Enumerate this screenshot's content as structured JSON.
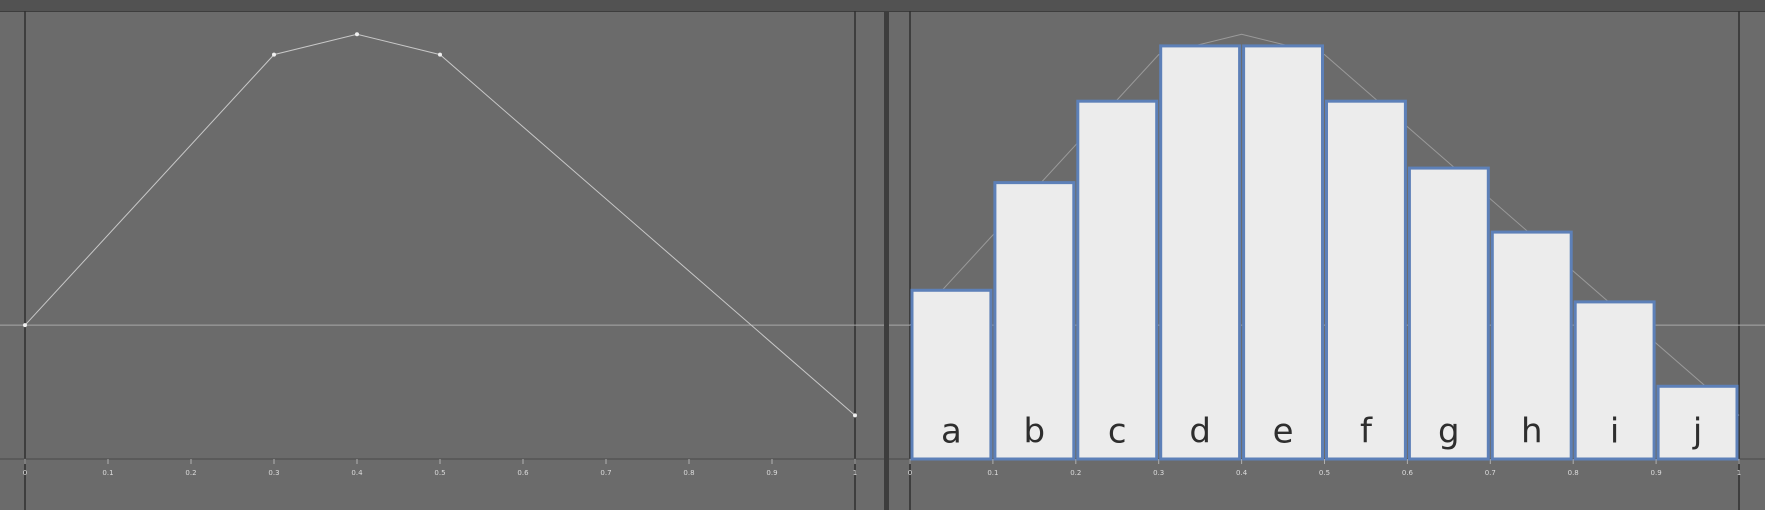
{
  "chart_data": [
    {
      "type": "line",
      "color": "#c8c8c8",
      "x": [
        0,
        0.3,
        0.4,
        0.5,
        1
      ],
      "values": [
        0,
        0.93,
        1,
        0.93,
        -0.31
      ],
      "xlim": [
        0,
        1
      ],
      "ylim": [
        -0.46,
        1.08
      ],
      "xticks": [
        0,
        0.1,
        0.2,
        0.3,
        0.4,
        0.5,
        0.6,
        0.7,
        0.8,
        0.9,
        1
      ]
    },
    {
      "type": "bar",
      "color": "#ececec",
      "edge_color": "#5d80b8",
      "categories": [
        "a",
        "b",
        "c",
        "d",
        "e",
        "f",
        "g",
        "h",
        "i",
        "j"
      ],
      "values": [
        0.12,
        0.49,
        0.77,
        0.96,
        0.96,
        0.77,
        0.54,
        0.32,
        0.08,
        -0.21
      ],
      "curve": {
        "x": [
          0,
          0.3,
          0.4,
          0.5,
          1
        ],
        "values": [
          0,
          0.93,
          1,
          0.93,
          -0.31
        ],
        "color": "#9a9a9a"
      },
      "xlim": [
        0,
        1
      ],
      "ylim": [
        -0.46,
        1.08
      ],
      "xticks": [
        0,
        0.1,
        0.2,
        0.3,
        0.4,
        0.5,
        0.6,
        0.7,
        0.8,
        0.9,
        1
      ]
    }
  ]
}
